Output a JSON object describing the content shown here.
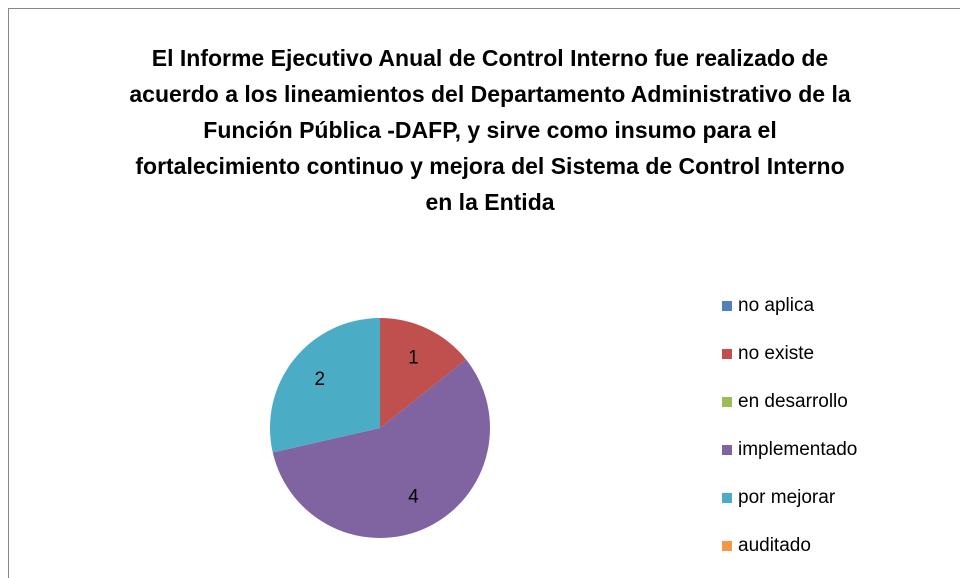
{
  "chart_data": {
    "type": "pie",
    "title": "El Informe Ejecutivo Anual de Control Interno fue realizado de acuerdo a los lineamientos del Departamento Administrativo de la Función Pública -DAFP, y sirve como insumo para el fortalecimiento continuo y mejora del Sistema de Control Interno en la Entida",
    "categories": [
      "no aplica",
      "no existe",
      "en desarrollo",
      "implementado",
      "por mejorar",
      "auditado"
    ],
    "values": [
      0,
      1,
      0,
      4,
      2,
      0
    ],
    "colors": [
      "#4f81bd",
      "#c0504d",
      "#9bbb59",
      "#8064a2",
      "#4bacc6",
      "#f79646"
    ],
    "legend": "right"
  }
}
